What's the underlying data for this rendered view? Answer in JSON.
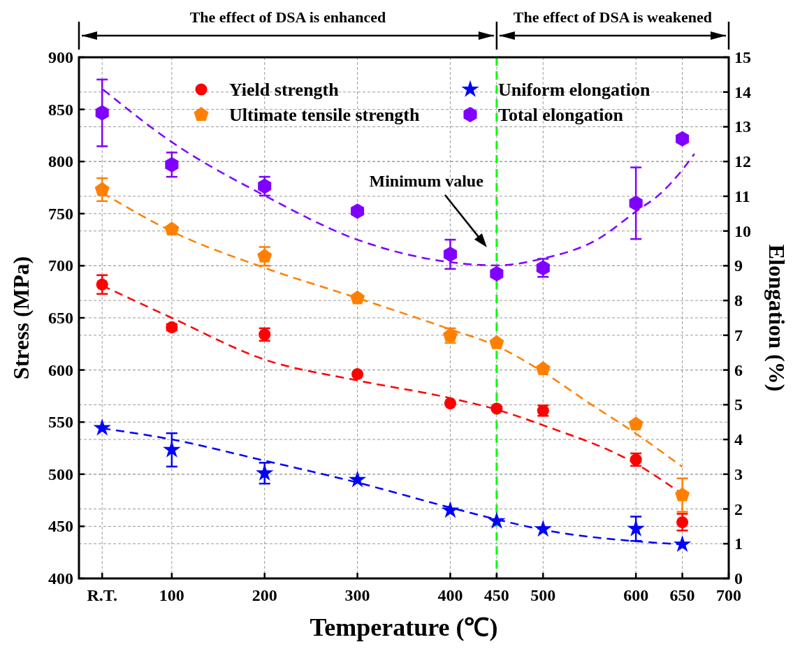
{
  "chart_data": {
    "type": "scatter",
    "xlabel": "Temperature (℃)",
    "ylabel": "Stress (MPa)",
    "y2label": "Elongation (%)",
    "xlim": [
      0,
      700
    ],
    "xticks": [
      {
        "value": 25,
        "label": "R.T."
      },
      100,
      200,
      300,
      400,
      450,
      500,
      600,
      650,
      700
    ],
    "ylim": [
      400,
      900
    ],
    "yticks": [
      400,
      450,
      500,
      550,
      600,
      650,
      700,
      750,
      800,
      850,
      900
    ],
    "y2lim": [
      0,
      15
    ],
    "y2ticks": [
      0,
      1,
      2,
      3,
      4,
      5,
      6,
      7,
      8,
      9,
      10,
      11,
      12,
      13,
      14,
      15
    ],
    "grid": true,
    "legend": "top",
    "ref_lines": [
      {
        "axis": "x",
        "value": 450,
        "color": "#00ff00",
        "line_style": "dashed"
      }
    ],
    "annotations": [
      "The effect of DSA is enhanced",
      "The effect of DSA is weakened",
      "Minimum value"
    ],
    "series": [
      {
        "name": "Yield strength",
        "marker": "circle",
        "color": "#ff0000",
        "x": [
          25,
          100,
          200,
          300,
          400,
          450,
          500,
          600,
          650
        ],
        "values": [
          682,
          641,
          634,
          596,
          568,
          563,
          561,
          514,
          454
        ],
        "errors": [
          9,
          3,
          6,
          null,
          null,
          null,
          5,
          6,
          8
        ]
      },
      {
        "name": "Ultimate tensile strength",
        "color": "#ff8000",
        "x": [
          25,
          100,
          200,
          300,
          400,
          450,
          500,
          600,
          650
        ],
        "values": [
          773,
          735,
          709,
          669,
          633,
          626,
          601,
          548,
          480
        ],
        "errors": [
          11,
          null,
          9,
          null,
          7,
          null,
          null,
          null,
          16
        ]
      },
      {
        "name": "Uniform elongation",
        "marker": "star",
        "axis": "y2",
        "color": "#0000ff",
        "x": [
          25,
          100,
          200,
          300,
          400,
          450,
          500,
          600,
          650
        ],
        "values": [
          4.33,
          3.7,
          3.03,
          2.84,
          1.96,
          1.65,
          1.42,
          1.43,
          0.98
        ],
        "errors": [
          null,
          0.48,
          0.3,
          null,
          null,
          null,
          null,
          0.35,
          null
        ]
      },
      {
        "name": "Total elongation",
        "axis": "y2",
        "color": "#7f00ff",
        "x": [
          25,
          100,
          200,
          300,
          400,
          450,
          500,
          600,
          650
        ],
        "values": [
          13.4,
          11.91,
          11.29,
          10.57,
          9.33,
          8.77,
          8.94,
          10.8,
          12.65
        ],
        "errors": [
          0.96,
          0.35,
          0.27,
          null,
          0.42,
          null,
          0.26,
          1.03,
          null
        ]
      },
      {
        "type": "line",
        "line_style": "dashed",
        "color": "#ff0000",
        "x": [
          25,
          100,
          200,
          300,
          400,
          450,
          500,
          600,
          650
        ],
        "values": [
          681,
          650,
          610,
          590,
          573,
          562,
          547,
          510,
          481
        ]
      },
      {
        "type": "line",
        "line_style": "dashed",
        "color": "#ff8000",
        "x": [
          25,
          100,
          200,
          300,
          400,
          450,
          500,
          550,
          600,
          650
        ],
        "values": [
          770,
          733,
          698,
          669,
          639,
          623,
          598,
          568,
          539,
          507
        ]
      },
      {
        "type": "line",
        "line_style": "dashed",
        "color": "#0000ff",
        "axis": "y2",
        "x": [
          25,
          100,
          200,
          300,
          400,
          450,
          500,
          600,
          650
        ],
        "values": [
          4.32,
          4.0,
          3.39,
          2.76,
          2.04,
          1.7,
          1.4,
          1.07,
          0.98
        ]
      },
      {
        "type": "line",
        "line_style": "dashed",
        "color": "#7f00ff",
        "axis": "y2",
        "x": [
          26,
          100,
          200,
          300,
          398,
          450,
          500,
          558,
          600,
          627,
          650,
          663
        ],
        "values": [
          14.07,
          12.56,
          11.02,
          9.75,
          9.11,
          9.01,
          9.21,
          9.75,
          10.56,
          11.09,
          11.76,
          12.22
        ]
      }
    ]
  }
}
